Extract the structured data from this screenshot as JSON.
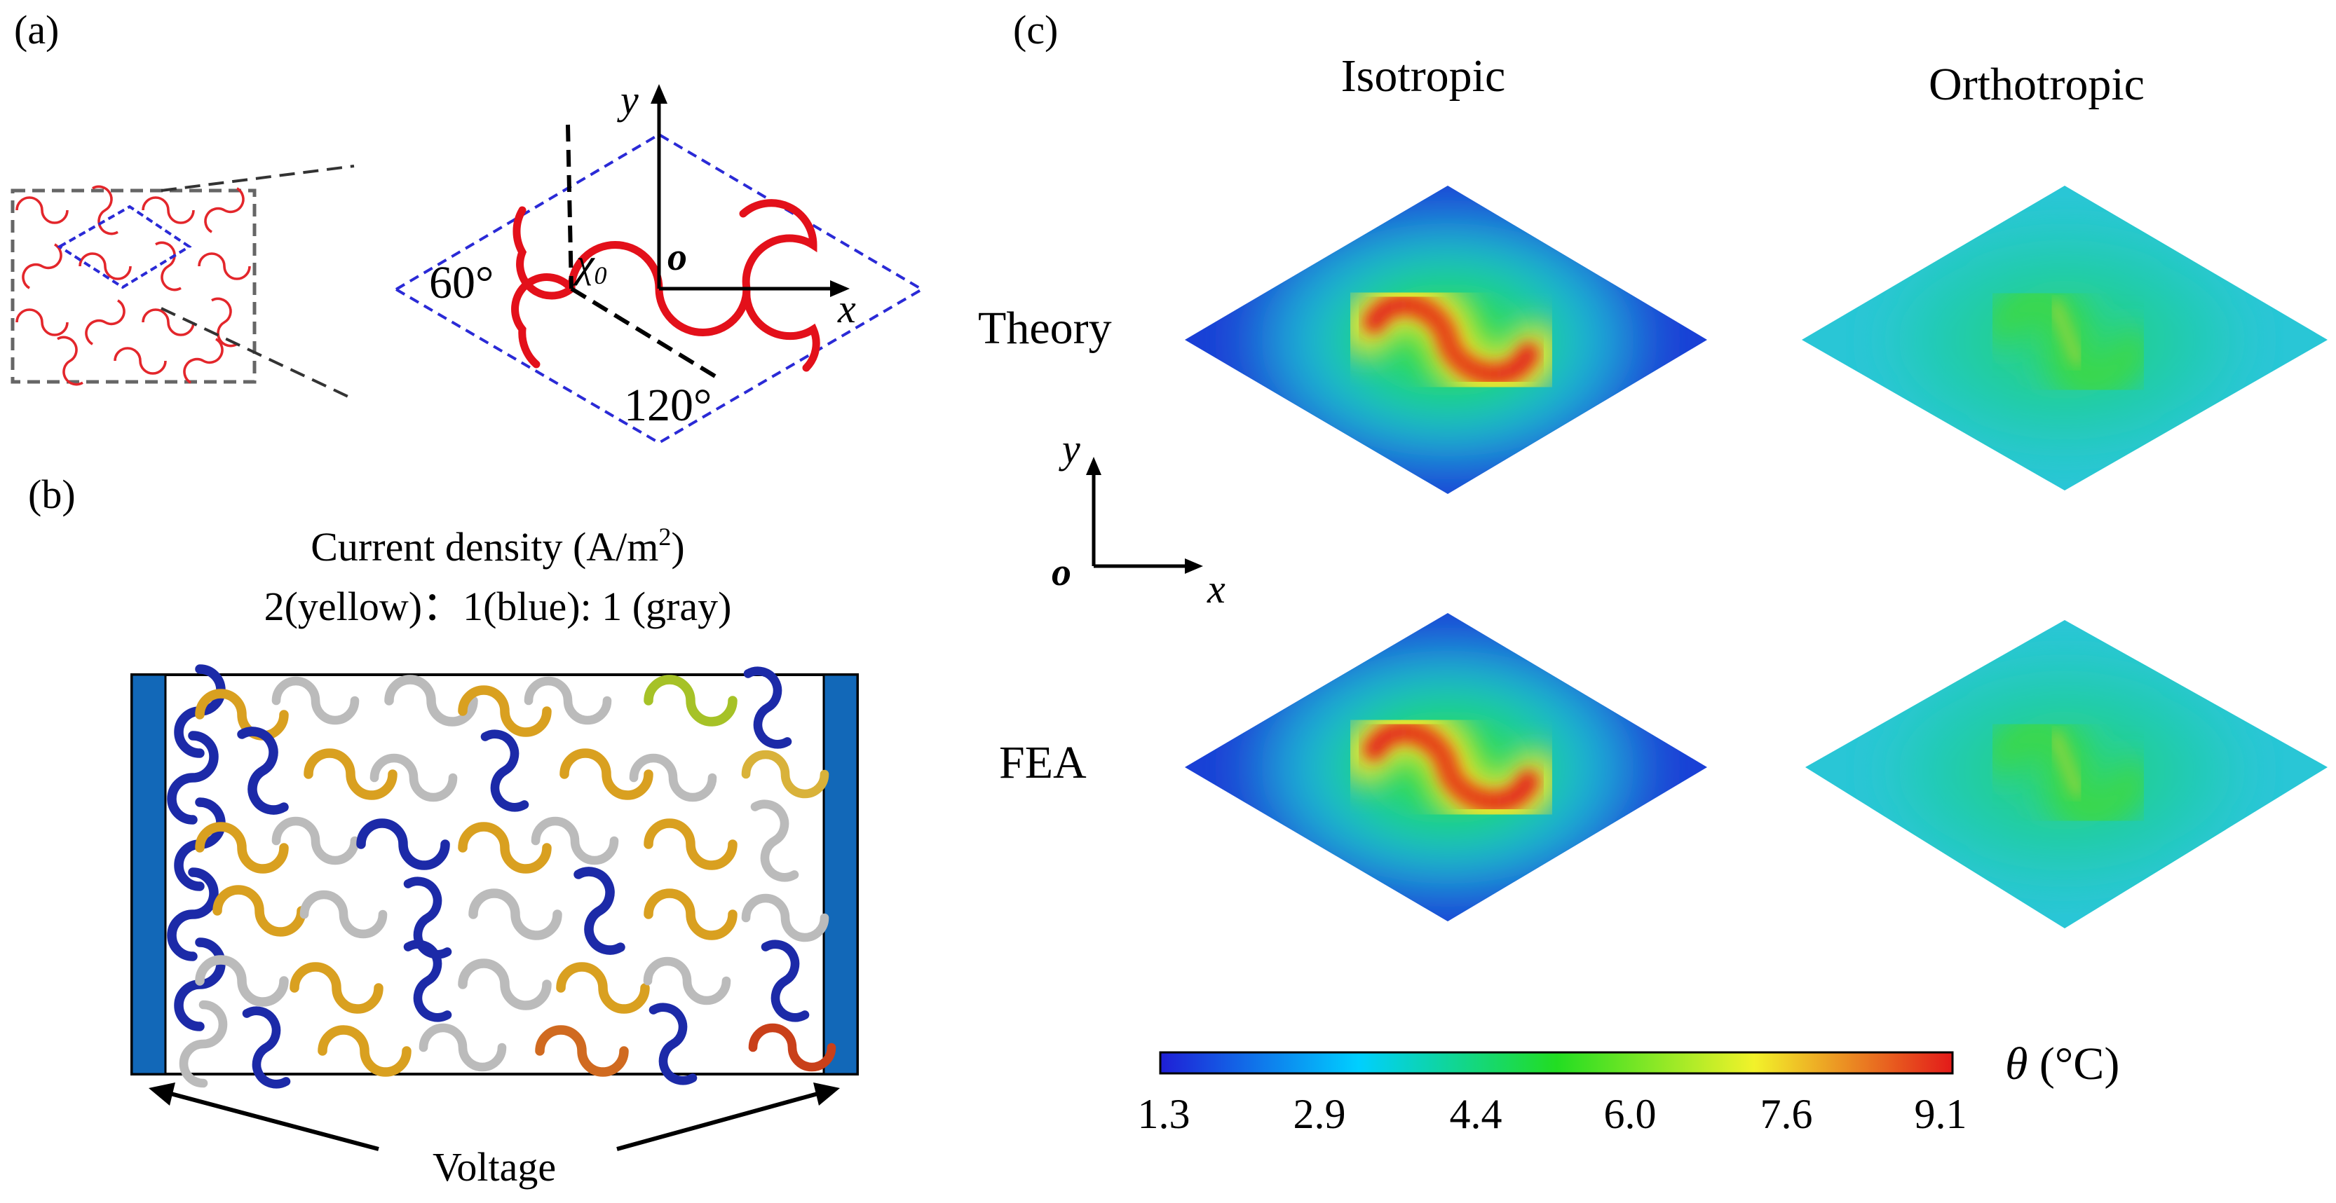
{
  "panels": {
    "a": {
      "label": "(a)",
      "axis_y": "y",
      "axis_x": "x",
      "origin": "o",
      "chi_label": "χ",
      "chi_sub": "0",
      "angle_60": "60°",
      "angle_120": "120°"
    },
    "b": {
      "label": "(b)",
      "title_line1": "Current density (A/m",
      "title_sup": "2",
      "title_line1_end": ")",
      "title_line2": "2(yellow)：1(blue): 1 (gray)",
      "voltage_label": "Voltage"
    },
    "c": {
      "label": "(c)",
      "col_isotropic": "Isotropic",
      "col_orthotropic": "Orthotropic",
      "row_theory": "Theory",
      "row_fea": "FEA",
      "axis_y": "y",
      "axis_x": "x",
      "origin": "o",
      "colorbar": {
        "label_symbol": "θ",
        "label_unit": " (°C)",
        "ticks": [
          "1.3",
          "2.9",
          "4.4",
          "6.0",
          "7.6",
          "9.1"
        ],
        "colors": [
          "#1f1fd6",
          "#00cfff",
          "#22dd22",
          "#f2f22a",
          "#e31a1a"
        ]
      }
    }
  }
}
